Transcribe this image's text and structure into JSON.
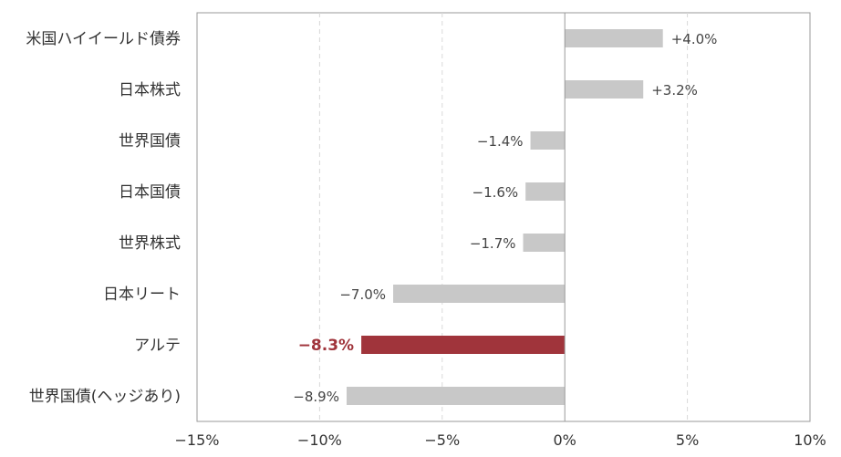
{
  "chart_data": {
    "type": "bar",
    "orientation": "horizontal",
    "categories": [
      "米国ハイイールド債券",
      "日本株式",
      "世界国債",
      "日本国債",
      "世界株式",
      "日本リート",
      "アルテ",
      "世界国債(ヘッジあり)"
    ],
    "values": [
      4.0,
      3.2,
      -1.4,
      -1.6,
      -1.7,
      -7.0,
      -8.3,
      -8.9
    ],
    "data_labels": [
      "+4.0%",
      "+3.2%",
      "−1.4%",
      "−1.6%",
      "−1.7%",
      "−7.0%",
      "−8.3%",
      "−8.9%"
    ],
    "highlight_index": 6,
    "xlim": [
      -15,
      10
    ],
    "xticks": [
      -15,
      -10,
      -5,
      0,
      5,
      10
    ],
    "xtick_labels": [
      "−15%",
      "−10%",
      "−5%",
      "0%",
      "5%",
      "10%"
    ],
    "grid": "vertical dashed",
    "colors": {
      "bar": "#c8c8c8",
      "highlight": "#a0343b",
      "highlight_label": "#a0343b",
      "grid": "#d9d9d9",
      "axis": "#999999"
    },
    "title": "",
    "xlabel": "",
    "ylabel": ""
  }
}
